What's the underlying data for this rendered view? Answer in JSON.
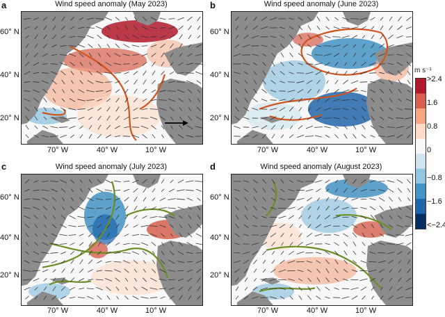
{
  "panels": [
    {
      "letter": "a",
      "title": "Wind speed anomaly (May 2023)"
    },
    {
      "letter": "b",
      "title": "Wind speed anomaly (June 2023)"
    },
    {
      "letter": "c",
      "title": "Wind speed anomaly (July 2023)"
    },
    {
      "letter": "d",
      "title": "Wind speed anomaly (August 2023)"
    }
  ],
  "lat_ticks": [
    "60° N",
    "40° N",
    "20° N"
  ],
  "lon_ticks": [
    "70° W",
    "40° W",
    "10° W"
  ],
  "colorbar": {
    "unit": "m s⁻¹",
    "labels": [
      ">2.4",
      "1.6",
      "0.8",
      "0",
      "−0.8",
      "−1.6",
      "<−2.4"
    ],
    "colors": [
      "#b2182b",
      "#d6604d",
      "#f4a582",
      "#fddbc7",
      "#f7f7f7",
      "#d1e5f0",
      "#92c5de",
      "#4393c3",
      "#2166ac",
      "#053061"
    ]
  },
  "contour_colors": {
    "a": "#d2541d",
    "b": "#d2541d",
    "c": "#6b8e23",
    "d": "#6b8e23"
  },
  "land_color": "#8c8c8c"
}
